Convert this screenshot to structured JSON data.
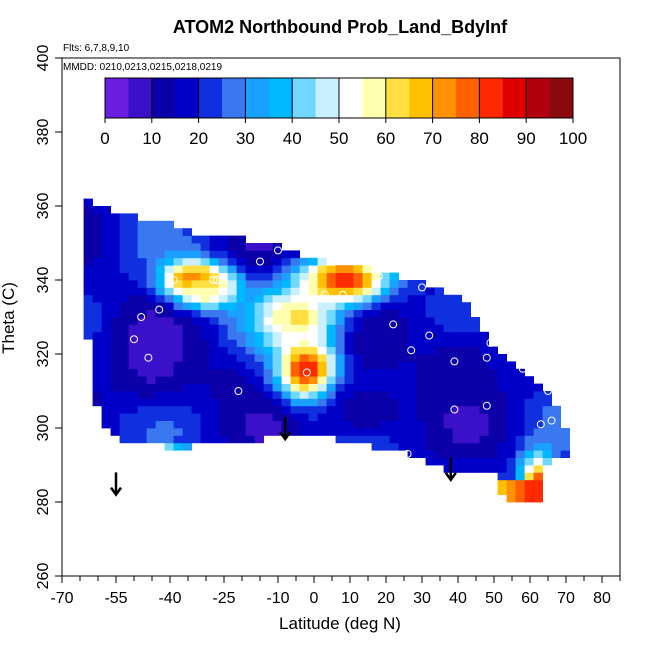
{
  "chart_data": {
    "type": "heatmap",
    "title": "ATOM2 Northbound Prob_Land_BdyInf",
    "notes": {
      "flights": "Flts: 6,7,8,9,10",
      "dates": "MMDD: 0210,0213,0215,0218,0219"
    },
    "xlabel": "Latitude (deg N)",
    "ylabel": "Theta (C)",
    "xlim": [
      -70,
      85
    ],
    "ylim": [
      260,
      400
    ],
    "x_ticks": [
      -70,
      -55,
      -40,
      -25,
      -10,
      0,
      10,
      20,
      30,
      40,
      50,
      60,
      70,
      80
    ],
    "y_ticks": [
      260,
      280,
      300,
      320,
      340,
      360,
      380,
      400
    ],
    "x_minor_step": 5,
    "colorbar": {
      "range": [
        0,
        100
      ],
      "ticks": [
        0,
        10,
        20,
        30,
        40,
        50,
        60,
        70,
        80,
        90,
        100
      ],
      "colors": [
        "#6a1fe0",
        "#3a10c8",
        "#0c00a8",
        "#0000c8",
        "#1030e0",
        "#3a78f0",
        "#1aa0ff",
        "#00b8ff",
        "#70d8ff",
        "#c8f0ff",
        "#ffffff",
        "#ffffb0",
        "#ffe040",
        "#ffc000",
        "#ff9000",
        "#ff6000",
        "#ff2a00",
        "#e00000",
        "#b00010",
        "#8a0a10"
      ]
    },
    "field": {
      "region_polygon": [
        [
          -63,
          362
        ],
        [
          -60,
          360
        ],
        [
          -50,
          357
        ],
        [
          -40,
          355
        ],
        [
          -30,
          352
        ],
        [
          -20,
          351
        ],
        [
          -10,
          349
        ],
        [
          0,
          346
        ],
        [
          10,
          344
        ],
        [
          20,
          342
        ],
        [
          30,
          339
        ],
        [
          40,
          336
        ],
        [
          45,
          330
        ],
        [
          50,
          322
        ],
        [
          55,
          318
        ],
        [
          60,
          313
        ],
        [
          65,
          309
        ],
        [
          68,
          304
        ],
        [
          71,
          298
        ],
        [
          72,
          294
        ],
        [
          68,
          292
        ],
        [
          64,
          290
        ],
        [
          60,
          287
        ],
        [
          55,
          285
        ],
        [
          50,
          287
        ],
        [
          45,
          289
        ],
        [
          40,
          288
        ],
        [
          35,
          289
        ],
        [
          30,
          291
        ],
        [
          25,
          293
        ],
        [
          20,
          294
        ],
        [
          10,
          296
        ],
        [
          0,
          298
        ],
        [
          -8,
          299
        ],
        [
          -15,
          297
        ],
        [
          -25,
          296
        ],
        [
          -35,
          297
        ],
        [
          -45,
          296
        ],
        [
          -55,
          297
        ],
        [
          -58,
          300
        ],
        [
          -60,
          305
        ],
        [
          -62,
          310
        ],
        [
          -63,
          330
        ]
      ],
      "extra_patches": [
        {
          "polygon": [
            [
              50,
              288
            ],
            [
              56,
              291
            ],
            [
              61,
              296
            ],
            [
              63,
              289
            ],
            [
              64,
              283
            ],
            [
              63,
              280
            ],
            [
              55,
              280
            ],
            [
              52,
              283
            ]
          ],
          "value": 75
        },
        {
          "polygon": [
            [
              -45,
              296
            ],
            [
              -40,
              294.5
            ],
            [
              -35,
              294.5
            ],
            [
              -35,
              296.5
            ],
            [
              -45,
              297
            ]
          ],
          "value": 38
        }
      ],
      "hotspots": [
        {
          "lat": -33,
          "theta": 340,
          "value": 86,
          "radius": [
            9,
            5
          ]
        },
        {
          "lat": -2,
          "theta": 316,
          "value": 88,
          "radius": [
            8,
            8
          ]
        },
        {
          "lat": 8,
          "theta": 340,
          "value": 86,
          "radius": [
            12,
            6
          ]
        },
        {
          "lat": -5,
          "theta": 330,
          "value": 62,
          "radius": [
            12,
            8
          ]
        },
        {
          "lat": -30,
          "theta": 337,
          "value": 60,
          "radius": [
            8,
            5
          ]
        },
        {
          "lat": 62,
          "theta": 285,
          "value": 74,
          "radius": [
            5,
            8
          ]
        }
      ],
      "lowspots": [
        {
          "lat": -45,
          "theta": 318,
          "value": 8,
          "radius": [
            12,
            12
          ]
        },
        {
          "lat": 15,
          "theta": 305,
          "value": 10,
          "radius": [
            12,
            8
          ]
        },
        {
          "lat": 40,
          "theta": 318,
          "value": 12,
          "radius": [
            14,
            10
          ]
        },
        {
          "lat": -25,
          "theta": 312,
          "value": 14,
          "radius": [
            8,
            8
          ]
        }
      ],
      "baseline_value": 18
    },
    "samples": [
      {
        "lat": -43,
        "theta": 332
      },
      {
        "lat": -48,
        "theta": 330
      },
      {
        "lat": -50,
        "theta": 324
      },
      {
        "lat": -46,
        "theta": 319
      },
      {
        "lat": -39,
        "theta": 340
      },
      {
        "lat": -28,
        "theta": 340
      },
      {
        "lat": -27,
        "theta": 340
      },
      {
        "lat": -25,
        "theta": 340
      },
      {
        "lat": -15,
        "theta": 345
      },
      {
        "lat": -10,
        "theta": 348
      },
      {
        "lat": -7,
        "theta": 327
      },
      {
        "lat": -2,
        "theta": 315
      },
      {
        "lat": 3,
        "theta": 336
      },
      {
        "lat": 8,
        "theta": 336
      },
      {
        "lat": 18,
        "theta": 341
      },
      {
        "lat": 22,
        "theta": 328
      },
      {
        "lat": 27,
        "theta": 321
      },
      {
        "lat": 30,
        "theta": 338
      },
      {
        "lat": 32,
        "theta": 325
      },
      {
        "lat": 39,
        "theta": 318
      },
      {
        "lat": 39,
        "theta": 305
      },
      {
        "lat": 48,
        "theta": 306
      },
      {
        "lat": 48,
        "theta": 319
      },
      {
        "lat": 49,
        "theta": 323
      },
      {
        "lat": 58,
        "theta": 316
      },
      {
        "lat": 63,
        "theta": 301
      },
      {
        "lat": 65,
        "theta": 310
      },
      {
        "lat": 66,
        "theta": 302
      },
      {
        "lat": -21,
        "theta": 310
      },
      {
        "lat": 26,
        "theta": 293
      }
    ],
    "arrows": [
      {
        "lat": -55,
        "theta_top": 288,
        "theta_bottom": 282
      },
      {
        "lat": -8,
        "theta_top": 303,
        "theta_bottom": 297
      },
      {
        "lat": 38,
        "theta_top": 292,
        "theta_bottom": 286
      }
    ]
  }
}
